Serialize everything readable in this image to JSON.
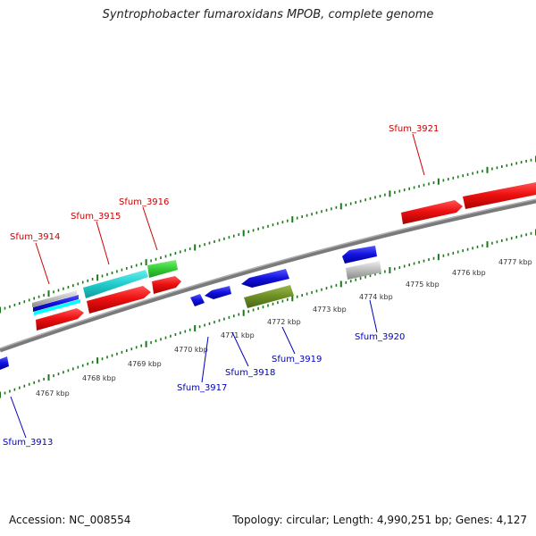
{
  "title": "Syntrophobacter fumaroxidans MPOB, complete genome",
  "footer": {
    "accession": "Accession: NC_008554",
    "topology": "Topology: circular; Length: 4,990,251 bp; Genes: 4,127"
  },
  "colors": {
    "forward_label": "#cc0000",
    "reverse_label": "#0000bb",
    "backbone": "#888888",
    "tick": "#1a7a1a"
  },
  "scale_labels": [
    "4767 kbp",
    "4768 kbp",
    "4769 kbp",
    "4770 kbp",
    "4771 kbp",
    "4772 kbp",
    "4773 kbp",
    "4774 kbp",
    "4775 kbp",
    "4776 kbp",
    "4777 kbp"
  ],
  "genes": {
    "forward": [
      {
        "name": "Sfum_3914",
        "label": "Sfum_3914"
      },
      {
        "name": "Sfum_3915",
        "label": "Sfum_3915"
      },
      {
        "name": "Sfum_3916",
        "label": "Sfum_3916"
      },
      {
        "name": "Sfum_3921",
        "label": "Sfum_3921"
      }
    ],
    "reverse": [
      {
        "name": "Sfum_3913",
        "label": "Sfum_3913"
      },
      {
        "name": "Sfum_3917",
        "label": "Sfum_3917"
      },
      {
        "name": "Sfum_3918",
        "label": "Sfum_3918"
      },
      {
        "name": "Sfum_3919",
        "label": "Sfum_3919"
      },
      {
        "name": "Sfum_3920",
        "label": "Sfum_3920"
      }
    ]
  },
  "feature_colors": [
    "#ee1111",
    "#22cccc",
    "#33cc33",
    "#1111dd",
    "#6b8e23",
    "#bbbbbb",
    "#00ffff"
  ]
}
